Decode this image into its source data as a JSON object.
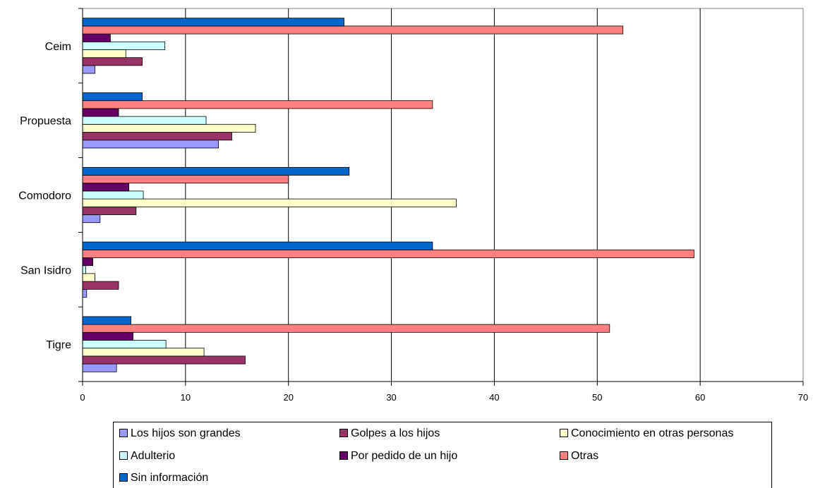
{
  "chart_data": {
    "type": "bar",
    "orientation": "horizontal",
    "categories": [
      "Ceim",
      "Propuesta",
      "Comodoro",
      "San Isidro",
      "Tigre"
    ],
    "series": [
      {
        "name": "Los hijos son grandes",
        "color": "#9999FF",
        "values": [
          1.2,
          13.2,
          1.7,
          0.4,
          3.3
        ]
      },
      {
        "name": "Golpes a los hijos",
        "color": "#993366",
        "values": [
          5.8,
          14.5,
          5.2,
          3.5,
          15.8
        ]
      },
      {
        "name": "Conocimiento en otras personas",
        "color": "#FFFFCC",
        "values": [
          4.2,
          16.8,
          36.3,
          1.2,
          11.8
        ]
      },
      {
        "name": "Adulterio",
        "color": "#CCFFFF",
        "values": [
          8.0,
          12.0,
          5.9,
          0.3,
          8.1
        ]
      },
      {
        "name": "Por pedido de un hijo",
        "color": "#660066",
        "values": [
          2.7,
          3.5,
          4.5,
          1.0,
          4.9
        ]
      },
      {
        "name": "Otras",
        "color": "#FF8080",
        "values": [
          52.5,
          34.0,
          20.0,
          59.4,
          51.2
        ]
      },
      {
        "name": "Sin información",
        "color": "#0066CC",
        "values": [
          25.4,
          5.8,
          25.9,
          34.0,
          4.7
        ]
      }
    ],
    "xlim": [
      0,
      70
    ],
    "xticks": [
      "0",
      "10",
      "20",
      "30",
      "40",
      "50",
      "60",
      "70"
    ],
    "grid": true,
    "legend_position": "bottom"
  }
}
